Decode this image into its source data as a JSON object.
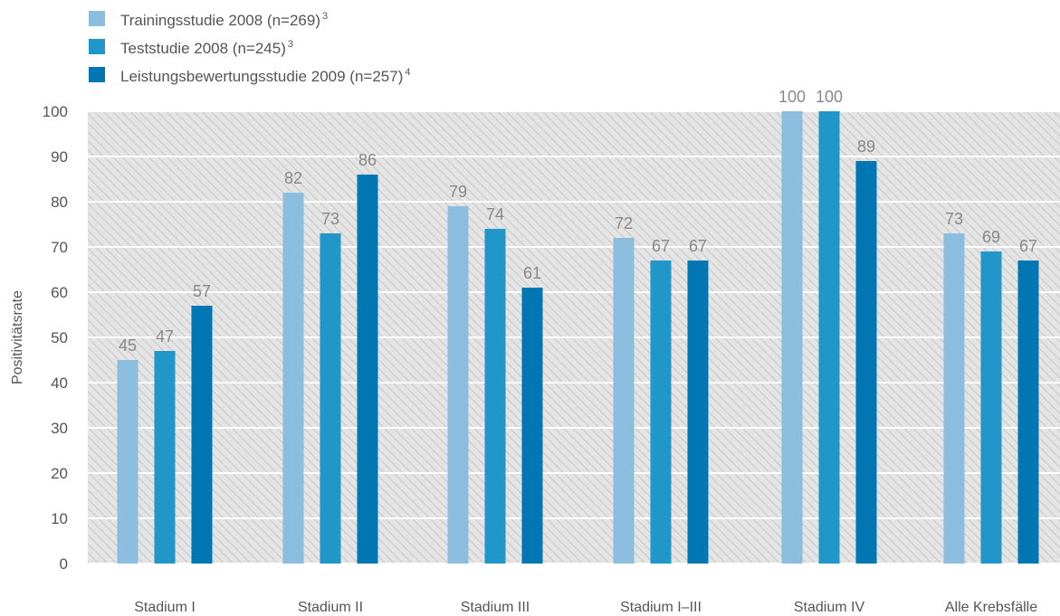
{
  "chart_data": {
    "type": "bar",
    "title": "",
    "xlabel": "",
    "ylabel": "Positivitätsrate",
    "ylim": [
      0,
      100
    ],
    "yticks": [
      0,
      10,
      20,
      30,
      40,
      50,
      60,
      70,
      80,
      90,
      100
    ],
    "grid": "hatched-background",
    "legend_position": "top-left",
    "categories": [
      "Stadium I",
      "Stadium II",
      "Stadium III",
      "Stadium I–III",
      "Stadium IV",
      "Alle Krebsfälle"
    ],
    "series": [
      {
        "name": "Trainingsstudie 2008 (n=269)",
        "superscript": "3",
        "color": "#8BBDDF",
        "values": [
          45,
          82,
          79,
          72,
          100,
          73
        ]
      },
      {
        "name": "Teststudie 2008 (n=245)",
        "superscript": "3",
        "color": "#2096C9",
        "values": [
          47,
          73,
          74,
          67,
          100,
          69
        ]
      },
      {
        "name": "Leistungsbewertungsstudie 2009 (n=257)",
        "superscript": "4",
        "color": "#0077B3",
        "values": [
          57,
          86,
          61,
          67,
          89,
          67
        ]
      }
    ]
  }
}
